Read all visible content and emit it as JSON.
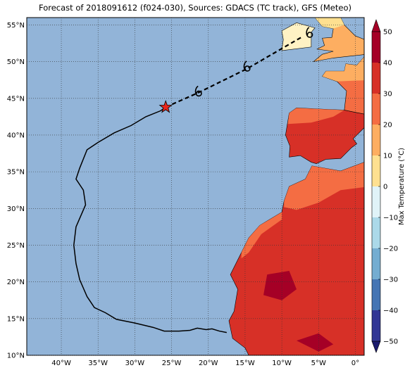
{
  "chart_data": {
    "type": "map",
    "title": "Forecast of 2018091612 (f024-030), Sources: GDACS (TC track), GFS (Meteo)",
    "xlim": [
      -44.7,
      1.2
    ],
    "ylim": [
      10,
      56
    ],
    "xticks": [
      {
        "value": -40,
        "label": "40°W"
      },
      {
        "value": -35,
        "label": "35°W"
      },
      {
        "value": -30,
        "label": "30°W"
      },
      {
        "value": -25,
        "label": "25°W"
      },
      {
        "value": -20,
        "label": "20°W"
      },
      {
        "value": -15,
        "label": "15°W"
      },
      {
        "value": -10,
        "label": "10°W"
      },
      {
        "value": -5,
        "label": "5°W"
      },
      {
        "value": 0,
        "label": "0°"
      }
    ],
    "yticks": [
      {
        "value": 10,
        "label": "10°N"
      },
      {
        "value": 15,
        "label": "15°N"
      },
      {
        "value": 20,
        "label": "20°N"
      },
      {
        "value": 25,
        "label": "25°N"
      },
      {
        "value": 30,
        "label": "30°N"
      },
      {
        "value": 35,
        "label": "35°N"
      },
      {
        "value": 40,
        "label": "40°N"
      },
      {
        "value": 45,
        "label": "45°N"
      },
      {
        "value": 50,
        "label": "50°N"
      },
      {
        "value": 55,
        "label": "55°N"
      }
    ],
    "grid": true,
    "track_observed": {
      "lon": [
        -17.5,
        -18.5,
        -19.5,
        -20.3,
        -21.5,
        -22.5,
        -24,
        -26,
        -27.5,
        -30,
        -32.5,
        -34,
        -35.5,
        -36.5,
        -37.5,
        -38,
        -38.3,
        -38,
        -36.7,
        -37,
        -38,
        -37.5,
        -36.5,
        -35,
        -32.8,
        -30.5,
        -28.5,
        -26.5,
        -25.8
      ],
      "lat": [
        13.1,
        13.3,
        13.6,
        13.5,
        13.7,
        13.4,
        13.3,
        13.3,
        13.8,
        14.4,
        14.9,
        15.8,
        16.5,
        18,
        20.3,
        22.5,
        25,
        27.5,
        30.5,
        32.5,
        34,
        35.5,
        38,
        39,
        40.3,
        41.3,
        42.5,
        43.3,
        43.8
      ]
    },
    "track_forecast": {
      "lon": [
        -25.8,
        -21.3,
        -14.8,
        -7.2
      ],
      "lat": [
        43.8,
        45.8,
        49,
        53.4
      ]
    },
    "current_position": {
      "lon": -25.8,
      "lat": 43.8
    },
    "forecast_positions": {
      "lon": [
        -21.3,
        -14.7,
        -6.2
      ],
      "lat": [
        45.8,
        49.2,
        53.8
      ]
    },
    "colorbar": {
      "label": "Max Temperature (°C)",
      "lim": [
        -50,
        50
      ],
      "ticks": [
        50,
        40,
        30,
        20,
        10,
        0,
        {
          "value": -10,
          "label": "−10"
        },
        {
          "value": -20,
          "label": "−20"
        },
        {
          "value": -30,
          "label": "−30"
        },
        {
          "value": -40,
          "label": "−40"
        },
        {
          "value": -50,
          "label": "−50"
        }
      ],
      "colors": [
        "#1a1a6e",
        "#313695",
        "#4575b4",
        "#74add1",
        "#abd9e9",
        "#e0f3f8",
        "#fee090",
        "#fdae61",
        "#f46d43",
        "#d73027",
        "#a50026"
      ]
    }
  }
}
